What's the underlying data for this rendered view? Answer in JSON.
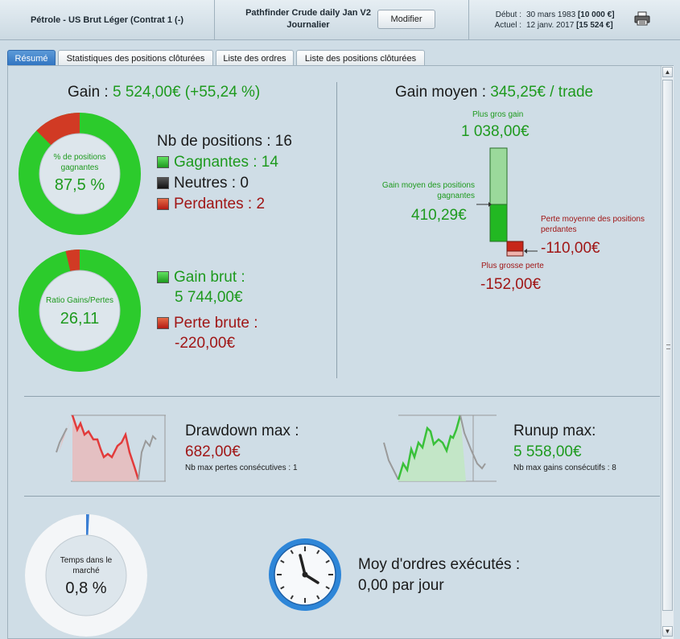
{
  "header": {
    "instrument": "Pétrole - US Brut Léger (Contrat 1 (-)",
    "strategy_name": "Pathfinder Crude daily Jan V2",
    "timeframe": "Journalier",
    "modify_label": "Modifier",
    "start_label": "Début :",
    "start_date": "30 mars 1983",
    "start_capital": "[10 000 €]",
    "current_label": "Actuel :",
    "current_date": "12 janv. 2017",
    "current_capital": "[15 524 €]"
  },
  "tabs": [
    {
      "label": "Résumé",
      "active": true
    },
    {
      "label": "Statistiques des positions clôturées"
    },
    {
      "label": "Liste des ordres"
    },
    {
      "label": "Liste des positions clôturées"
    }
  ],
  "gain": {
    "label": "Gain : ",
    "value": "5 524,00€ (+55,24 %)"
  },
  "win_ring": {
    "caption": "% de positions gagnantes",
    "value": "87,5 %",
    "win_fraction": 0.875
  },
  "positions": {
    "total": "Nb de positions : 16",
    "winners": "Gagnantes : 14",
    "neutral": "Neutres : 0",
    "losers": "Perdantes : 2"
  },
  "ratio_ring": {
    "caption": "Ratio Gains/Pertes",
    "value": "26,11",
    "gain_fraction": 0.963
  },
  "gross": {
    "gain_label": "Gain brut :",
    "gain_value": "5 744,00€",
    "loss_label": "Perte brute :",
    "loss_value": "-220,00€"
  },
  "avg_gain": {
    "label": "Gain moyen : ",
    "value": "345,25€ / trade",
    "largest_gain_label": "Plus gros gain",
    "largest_gain_value": "1 038,00€",
    "avg_winning_label": "Gain moyen des positions gagnantes",
    "avg_winning_value": "410,29€",
    "avg_losing_label": "Perte moyenne des positions perdantes",
    "avg_losing_value": "-110,00€",
    "largest_loss_label": "Plus grosse perte",
    "largest_loss_value": "-152,00€"
  },
  "drawdown": {
    "label": "Drawdown max :",
    "value": "682,00€",
    "sub": "Nb max pertes consécutives : 1"
  },
  "runup": {
    "label": "Runup max:",
    "value": "5 558,00€",
    "sub": "Nb max gains consécutifs : 8"
  },
  "market_time": {
    "caption": "Temps dans le marché",
    "value": "0,8 %",
    "fraction": 0.008
  },
  "orders": {
    "label": "Moy d'ordres exécutés :",
    "value": "0,00 par jour"
  },
  "colors": {
    "gain": "#1e9a1e",
    "loss": "#a01616",
    "accent": "#2f73c0"
  }
}
